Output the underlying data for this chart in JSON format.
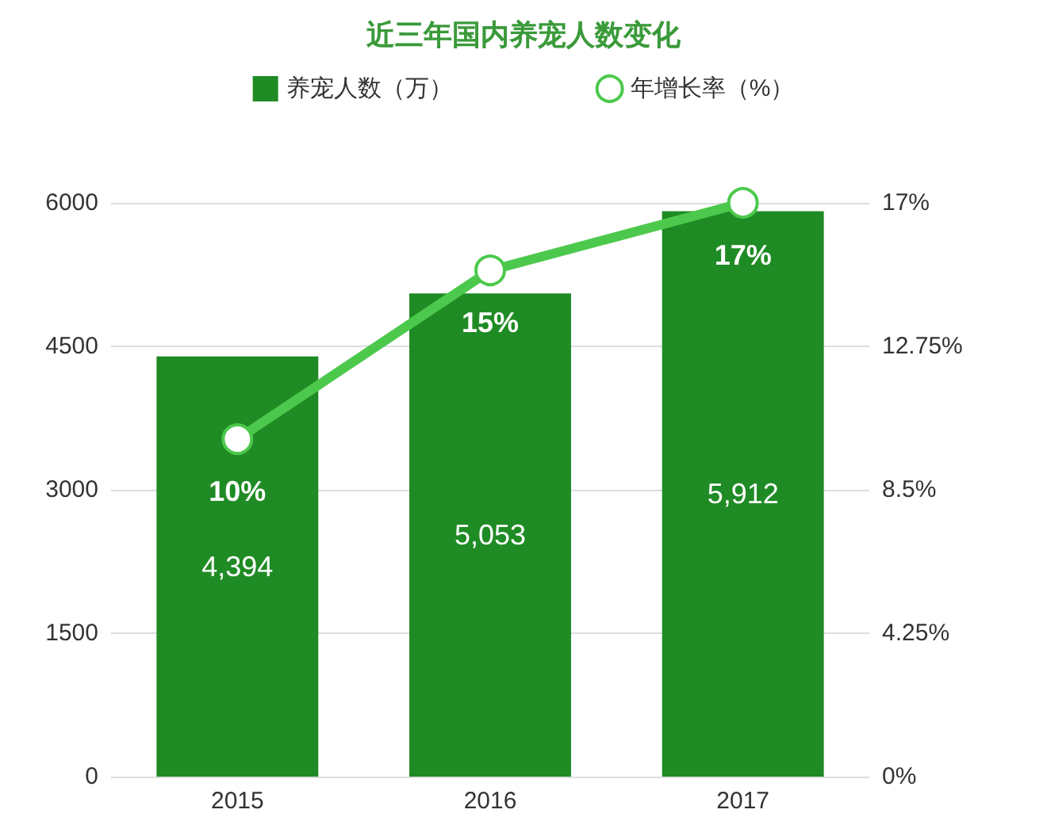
{
  "chart_data": {
    "type": "bar",
    "title": "近三年国内养宠人数变化",
    "categories": [
      "2015",
      "2016",
      "2017"
    ],
    "series": [
      {
        "name": "养宠人数（万）",
        "color": "#1f8b24",
        "values": [
          4394,
          5053,
          5912
        ],
        "value_labels": [
          "4,394",
          "5,053",
          "5,912"
        ]
      },
      {
        "name": "年增长率（%）",
        "type": "line",
        "axis": "y2",
        "color": "#4cc94c",
        "values": [
          10,
          15,
          17
        ],
        "value_labels": [
          "10%",
          "15%",
          "17%"
        ],
        "marker": "circle"
      }
    ],
    "ylim": [
      0,
      6000
    ],
    "yticks": [
      0,
      1500,
      3000,
      4500,
      6000
    ],
    "y2lim": [
      0,
      17
    ],
    "y2ticks": [
      {
        "value": 0,
        "label": "0%"
      },
      {
        "value": 4.25,
        "label": "4.25%"
      },
      {
        "value": 8.5,
        "label": "8.5%"
      },
      {
        "value": 12.75,
        "label": "12.75%"
      },
      {
        "value": 17,
        "label": "17%"
      }
    ],
    "grid": "y",
    "legend": "top"
  }
}
